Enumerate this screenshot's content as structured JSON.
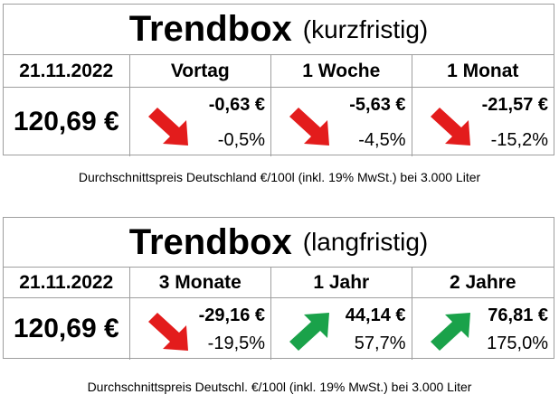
{
  "short_term": {
    "title": "Trendbox",
    "subtitle": "(kurzfristig)",
    "date": "21.11.2022",
    "price": "120,69 €",
    "columns": [
      {
        "label": "Vortag",
        "abs": "-0,63 €",
        "pct": "-0,5%",
        "direction": "down",
        "icon": "arrow-down-red",
        "color": "#e31c1c"
      },
      {
        "label": "1 Woche",
        "abs": "-5,63 €",
        "pct": "-4,5%",
        "direction": "down",
        "icon": "arrow-down-red",
        "color": "#e31c1c"
      },
      {
        "label": "1 Monat",
        "abs": "-21,57 €",
        "pct": "-15,2%",
        "direction": "down",
        "icon": "arrow-down-red",
        "color": "#e31c1c"
      }
    ],
    "note": "Durchschnittspreis Deutschland €/100l (inkl. 19% MwSt.) bei 3.000 Liter"
  },
  "long_term": {
    "title": "Trendbox",
    "subtitle": "(langfristig)",
    "date": "21.11.2022",
    "price": "120,69 €",
    "columns": [
      {
        "label": "3 Monate",
        "abs": "-29,16 €",
        "pct": "-19,5%",
        "direction": "down",
        "icon": "arrow-down-red",
        "color": "#e31c1c"
      },
      {
        "label": "1 Jahr",
        "abs": "44,14 €",
        "pct": "57,7%",
        "direction": "up",
        "icon": "arrow-up-green",
        "color": "#1aa24a"
      },
      {
        "label": "2 Jahre",
        "abs": "76,81 €",
        "pct": "175,0%",
        "direction": "up",
        "icon": "arrow-up-green",
        "color": "#1aa24a"
      }
    ],
    "note": "Durchschnittspreis Deutschl. €/100l (inkl. 19% MwSt.) bei 3.000 Liter"
  }
}
